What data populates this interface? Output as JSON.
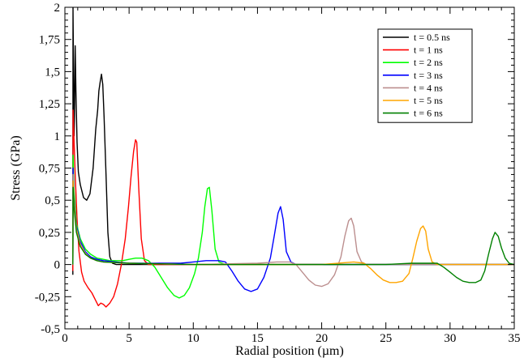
{
  "chart_data": {
    "type": "line",
    "title": "",
    "xlabel": "Radial position (µm)",
    "ylabel": "Stress (GPa)",
    "xlim": [
      0,
      35
    ],
    "ylim": [
      -0.5,
      2
    ],
    "x_ticks": [
      0,
      5,
      10,
      15,
      20,
      25,
      30,
      35
    ],
    "x_tick_labels": [
      "0",
      "5",
      "10",
      "15",
      "20",
      "25",
      "30",
      "35"
    ],
    "y_ticks": [
      -0.5,
      -0.25,
      0,
      0.25,
      0.5,
      0.75,
      1,
      1.25,
      1.5,
      1.75,
      2
    ],
    "y_tick_labels": [
      "-0,5",
      "-0,25",
      "0",
      "0,25",
      "0,5",
      "0,75",
      "1",
      "1,25",
      "1,5",
      "1,75",
      "2"
    ],
    "grid": false,
    "legend_position": "top-right",
    "series": [
      {
        "name": "t = 0.5 ns",
        "color": "#000000",
        "points": [
          [
            0.62,
            -0.08
          ],
          [
            0.63,
            2.0
          ],
          [
            0.68,
            1.4
          ],
          [
            0.72,
            1.0
          ],
          [
            0.76,
            1.25
          ],
          [
            0.8,
            1.7
          ],
          [
            0.86,
            1.35
          ],
          [
            0.95,
            0.95
          ],
          [
            1.05,
            0.72
          ],
          [
            1.2,
            0.62
          ],
          [
            1.45,
            0.52
          ],
          [
            1.7,
            0.5
          ],
          [
            1.95,
            0.55
          ],
          [
            2.2,
            0.75
          ],
          [
            2.4,
            1.05
          ],
          [
            2.55,
            1.2
          ],
          [
            2.65,
            1.35
          ],
          [
            2.75,
            1.42
          ],
          [
            2.85,
            1.48
          ],
          [
            2.95,
            1.4
          ],
          [
            3.05,
            1.15
          ],
          [
            3.2,
            0.7
          ],
          [
            3.35,
            0.25
          ],
          [
            3.5,
            0.06
          ],
          [
            3.7,
            0.01
          ],
          [
            4.0,
            0.0
          ],
          [
            35,
            0.0
          ]
        ]
      },
      {
        "name": "t = 1 ns",
        "color": "#ff0000",
        "points": [
          [
            0.62,
            -0.05
          ],
          [
            0.64,
            1.2
          ],
          [
            0.7,
            1.0
          ],
          [
            0.8,
            0.7
          ],
          [
            0.95,
            0.35
          ],
          [
            1.1,
            0.1
          ],
          [
            1.3,
            -0.06
          ],
          [
            1.5,
            -0.13
          ],
          [
            1.8,
            -0.18
          ],
          [
            2.1,
            -0.22
          ],
          [
            2.4,
            -0.28
          ],
          [
            2.6,
            -0.32
          ],
          [
            2.8,
            -0.3
          ],
          [
            3.0,
            -0.31
          ],
          [
            3.2,
            -0.33
          ],
          [
            3.5,
            -0.3
          ],
          [
            3.8,
            -0.25
          ],
          [
            4.1,
            -0.15
          ],
          [
            4.4,
            0.0
          ],
          [
            4.7,
            0.2
          ],
          [
            4.95,
            0.45
          ],
          [
            5.15,
            0.68
          ],
          [
            5.35,
            0.88
          ],
          [
            5.5,
            0.97
          ],
          [
            5.6,
            0.95
          ],
          [
            5.75,
            0.6
          ],
          [
            5.95,
            0.2
          ],
          [
            6.2,
            0.03
          ],
          [
            6.5,
            0.0
          ],
          [
            35,
            0.0
          ]
        ]
      },
      {
        "name": "t = 2 ns",
        "color": "#00ff00",
        "points": [
          [
            0.62,
            0.0
          ],
          [
            0.64,
            0.85
          ],
          [
            0.7,
            0.6
          ],
          [
            0.9,
            0.32
          ],
          [
            1.2,
            0.2
          ],
          [
            1.6,
            0.12
          ],
          [
            2.0,
            0.08
          ],
          [
            2.5,
            0.05
          ],
          [
            3.0,
            0.04
          ],
          [
            3.5,
            0.03
          ],
          [
            4.0,
            0.03
          ],
          [
            4.5,
            0.03
          ],
          [
            5.0,
            0.04
          ],
          [
            5.5,
            0.05
          ],
          [
            6.0,
            0.05
          ],
          [
            6.5,
            0.03
          ],
          [
            7.0,
            -0.02
          ],
          [
            7.5,
            -0.1
          ],
          [
            8.0,
            -0.18
          ],
          [
            8.5,
            -0.24
          ],
          [
            8.9,
            -0.26
          ],
          [
            9.3,
            -0.24
          ],
          [
            9.7,
            -0.18
          ],
          [
            10.1,
            -0.07
          ],
          [
            10.4,
            0.05
          ],
          [
            10.7,
            0.25
          ],
          [
            10.9,
            0.45
          ],
          [
            11.1,
            0.59
          ],
          [
            11.25,
            0.6
          ],
          [
            11.45,
            0.42
          ],
          [
            11.7,
            0.12
          ],
          [
            12.0,
            0.02
          ],
          [
            12.5,
            0.0
          ],
          [
            35,
            0.0
          ]
        ]
      },
      {
        "name": "t = 3 ns",
        "color": "#0000ff",
        "points": [
          [
            0.62,
            0.0
          ],
          [
            0.64,
            0.75
          ],
          [
            0.7,
            0.52
          ],
          [
            0.9,
            0.3
          ],
          [
            1.2,
            0.18
          ],
          [
            1.6,
            0.1
          ],
          [
            2.0,
            0.06
          ],
          [
            2.5,
            0.04
          ],
          [
            3.0,
            0.03
          ],
          [
            4.0,
            0.02
          ],
          [
            5.0,
            0.01
          ],
          [
            6.0,
            0.01
          ],
          [
            7.0,
            0.01
          ],
          [
            8.0,
            0.01
          ],
          [
            9.0,
            0.01
          ],
          [
            10.0,
            0.02
          ],
          [
            11.0,
            0.03
          ],
          [
            12.0,
            0.03
          ],
          [
            12.5,
            0.02
          ],
          [
            13.0,
            -0.05
          ],
          [
            13.5,
            -0.13
          ],
          [
            14.0,
            -0.19
          ],
          [
            14.5,
            -0.21
          ],
          [
            15.0,
            -0.19
          ],
          [
            15.5,
            -0.1
          ],
          [
            16.0,
            0.05
          ],
          [
            16.3,
            0.22
          ],
          [
            16.6,
            0.4
          ],
          [
            16.8,
            0.45
          ],
          [
            17.0,
            0.35
          ],
          [
            17.25,
            0.1
          ],
          [
            17.6,
            0.02
          ],
          [
            18.0,
            0.0
          ],
          [
            35,
            0.0
          ]
        ]
      },
      {
        "name": "t = 4 ns",
        "color": "#bc8f8f",
        "points": [
          [
            0.62,
            0.0
          ],
          [
            0.64,
            0.7
          ],
          [
            0.7,
            0.5
          ],
          [
            0.9,
            0.28
          ],
          [
            1.2,
            0.16
          ],
          [
            1.6,
            0.09
          ],
          [
            2.0,
            0.05
          ],
          [
            2.5,
            0.03
          ],
          [
            3.0,
            0.02
          ],
          [
            5.0,
            0.01
          ],
          [
            10.0,
            0.0
          ],
          [
            15.0,
            0.01
          ],
          [
            16.5,
            0.02
          ],
          [
            17.5,
            0.02
          ],
          [
            18.0,
            0.0
          ],
          [
            18.5,
            -0.06
          ],
          [
            19.0,
            -0.12
          ],
          [
            19.5,
            -0.16
          ],
          [
            20.0,
            -0.17
          ],
          [
            20.5,
            -0.15
          ],
          [
            21.0,
            -0.08
          ],
          [
            21.5,
            0.06
          ],
          [
            21.8,
            0.22
          ],
          [
            22.1,
            0.34
          ],
          [
            22.3,
            0.36
          ],
          [
            22.5,
            0.3
          ],
          [
            22.75,
            0.1
          ],
          [
            23.1,
            0.02
          ],
          [
            23.5,
            0.0
          ],
          [
            35,
            0.0
          ]
        ]
      },
      {
        "name": "t = 5 ns",
        "color": "#ffa500",
        "points": [
          [
            0.62,
            0.0
          ],
          [
            0.64,
            0.65
          ],
          [
            0.7,
            0.48
          ],
          [
            0.9,
            0.27
          ],
          [
            1.2,
            0.15
          ],
          [
            1.6,
            0.08
          ],
          [
            2.0,
            0.05
          ],
          [
            2.5,
            0.03
          ],
          [
            3.0,
            0.02
          ],
          [
            5.0,
            0.01
          ],
          [
            10.0,
            0.0
          ],
          [
            20.0,
            0.0
          ],
          [
            22.5,
            0.02
          ],
          [
            23.3,
            0.01
          ],
          [
            23.8,
            -0.03
          ],
          [
            24.3,
            -0.08
          ],
          [
            24.8,
            -0.12
          ],
          [
            25.3,
            -0.14
          ],
          [
            25.8,
            -0.14
          ],
          [
            26.3,
            -0.13
          ],
          [
            26.8,
            -0.07
          ],
          [
            27.1,
            0.05
          ],
          [
            27.4,
            0.18
          ],
          [
            27.7,
            0.28
          ],
          [
            27.9,
            0.3
          ],
          [
            28.1,
            0.26
          ],
          [
            28.3,
            0.12
          ],
          [
            28.6,
            0.02
          ],
          [
            29.0,
            0.0
          ],
          [
            35,
            0.0
          ]
        ]
      },
      {
        "name": "t = 6 ns",
        "color": "#008000",
        "points": [
          [
            0.62,
            0.0
          ],
          [
            0.64,
            0.6
          ],
          [
            0.7,
            0.45
          ],
          [
            0.9,
            0.25
          ],
          [
            1.2,
            0.14
          ],
          [
            1.6,
            0.08
          ],
          [
            2.0,
            0.05
          ],
          [
            2.5,
            0.03
          ],
          [
            3.0,
            0.02
          ],
          [
            5.0,
            0.01
          ],
          [
            10.0,
            0.0
          ],
          [
            25.0,
            0.0
          ],
          [
            27.0,
            0.01
          ],
          [
            28.0,
            0.01
          ],
          [
            29.0,
            0.01
          ],
          [
            29.5,
            -0.02
          ],
          [
            30.0,
            -0.06
          ],
          [
            30.5,
            -0.1
          ],
          [
            31.0,
            -0.13
          ],
          [
            31.5,
            -0.14
          ],
          [
            32.0,
            -0.14
          ],
          [
            32.4,
            -0.12
          ],
          [
            32.7,
            -0.05
          ],
          [
            33.0,
            0.08
          ],
          [
            33.3,
            0.2
          ],
          [
            33.5,
            0.25
          ],
          [
            33.75,
            0.22
          ],
          [
            34.0,
            0.13
          ],
          [
            34.3,
            0.05
          ],
          [
            34.6,
            0.01
          ],
          [
            35.0,
            0.0
          ]
        ]
      }
    ]
  }
}
